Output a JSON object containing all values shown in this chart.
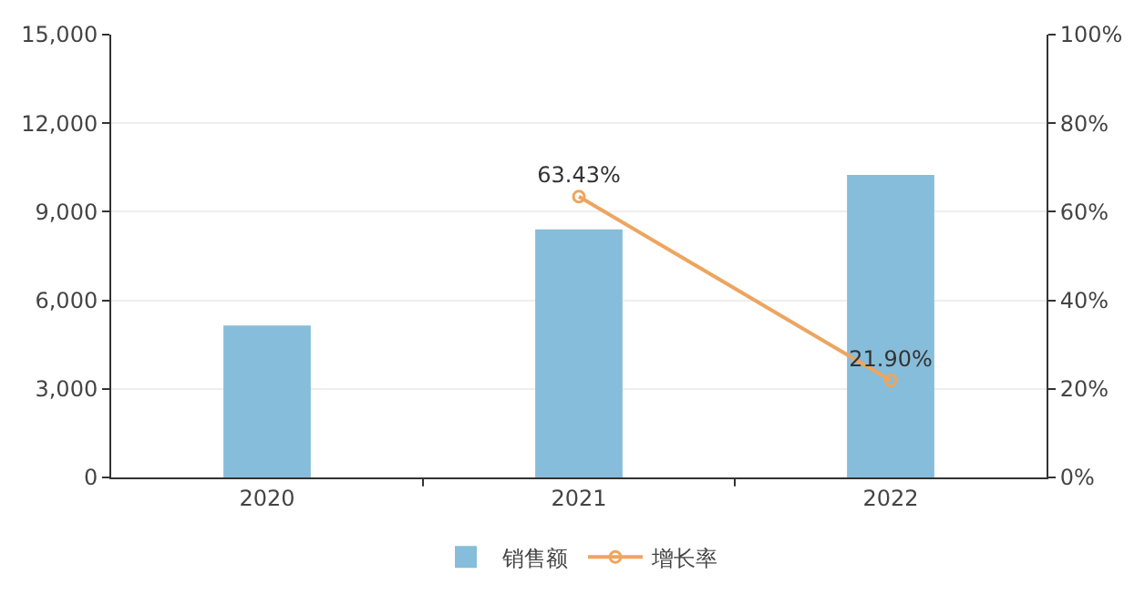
{
  "chart_data": {
    "type": "bar",
    "categories": [
      "2020",
      "2021",
      "2022"
    ],
    "series": [
      {
        "name": "销售额",
        "color": "#86bdda",
        "values": [
          5150,
          8400,
          10250
        ]
      },
      {
        "name": "增长率",
        "type": "line",
        "axis": "y2",
        "color": "#eda55f",
        "values": [
          null,
          63.43,
          21.9
        ],
        "value_labels": [
          null,
          "63.43%",
          "21.90%"
        ],
        "marker": "circle"
      }
    ],
    "ylim": [
      0,
      15000
    ],
    "yticks": [
      {
        "value": 0,
        "label": "0"
      },
      {
        "value": 3000,
        "label": "3,000"
      },
      {
        "value": 6000,
        "label": "6,000"
      },
      {
        "value": 9000,
        "label": "9,000"
      },
      {
        "value": 12000,
        "label": "12,000"
      },
      {
        "value": 15000,
        "label": "15,000"
      }
    ],
    "y2lim": [
      0,
      100
    ],
    "y2ticks": [
      {
        "value": 0,
        "label": "0%"
      },
      {
        "value": 20,
        "label": "20%"
      },
      {
        "value": 40,
        "label": "40%"
      },
      {
        "value": 60,
        "label": "60%"
      },
      {
        "value": 80,
        "label": "80%"
      },
      {
        "value": 100,
        "label": "100%"
      }
    ],
    "grid": "y",
    "legend": "bottom"
  }
}
